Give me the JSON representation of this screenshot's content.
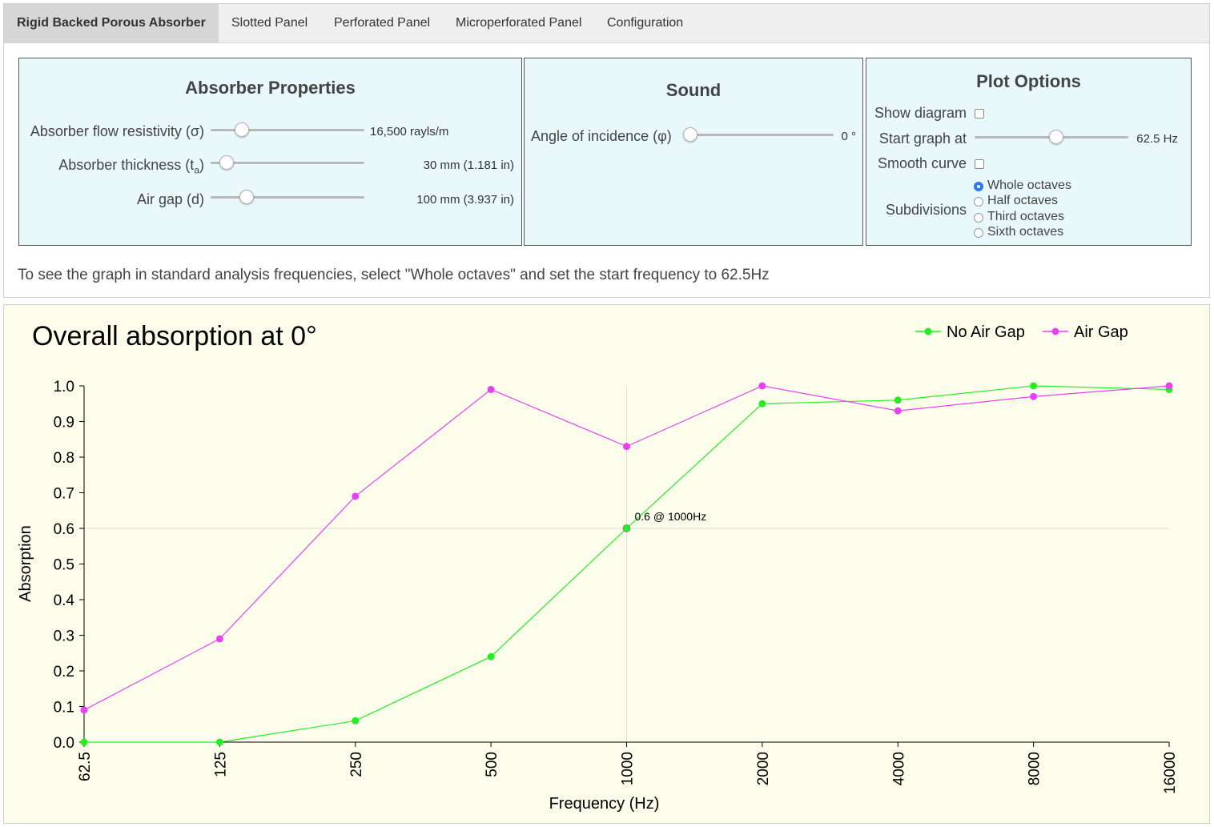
{
  "tabs": [
    {
      "label": "Rigid Backed Porous Absorber",
      "active": true
    },
    {
      "label": "Slotted Panel",
      "active": false
    },
    {
      "label": "Perforated Panel",
      "active": false
    },
    {
      "label": "Microperforated Panel",
      "active": false
    },
    {
      "label": "Configuration",
      "active": false
    }
  ],
  "absorber": {
    "title": "Absorber Properties",
    "flow_label": "Absorber flow resistivity (σ)",
    "flow_value": "16,500 rayls/m",
    "thickness_label_main": "Absorber thickness (t",
    "thickness_label_sub": "a",
    "thickness_label_end": ")",
    "thickness_value": "30 mm  (1.181 in)",
    "airgap_label": "Air gap (d)",
    "airgap_value": "100 mm  (3.937 in)"
  },
  "sound": {
    "title": "Sound",
    "angle_label": "Angle of incidence (φ)",
    "angle_value": "0 °"
  },
  "plot_options": {
    "title": "Plot Options",
    "show_diagram_label": "Show diagram",
    "start_graph_label": "Start graph at",
    "start_graph_value": "62.5 Hz",
    "smooth_curve_label": "Smooth curve",
    "subdivisions_label": "Subdivisions",
    "subdivision_options": [
      "Whole octaves",
      "Half octaves",
      "Third octaves",
      "Sixth octaves"
    ],
    "selected_subdivision": "Whole octaves"
  },
  "hint": "To see the graph in standard analysis frequencies, select \"Whole octaves\" and set the start frequency to 62.5Hz",
  "chart_data": {
    "type": "line",
    "title": "Overall absorption at 0°",
    "xlabel": "Frequency (Hz)",
    "ylabel": "Absorption",
    "categories": [
      "62.5",
      "125",
      "250",
      "500",
      "1000",
      "2000",
      "4000",
      "8000",
      "16000"
    ],
    "ylim": [
      0,
      1
    ],
    "yticks": [
      "0.0",
      "0.1",
      "0.2",
      "0.3",
      "0.4",
      "0.5",
      "0.6",
      "0.7",
      "0.8",
      "0.9",
      "1.0"
    ],
    "legend_position": "top-right",
    "series": [
      {
        "name": "No Air Gap",
        "color": "#22ee22",
        "values": [
          0.0,
          0.0,
          0.06,
          0.24,
          0.6,
          0.95,
          0.96,
          1.0,
          0.99
        ]
      },
      {
        "name": "Air Gap",
        "color": "#e642f2",
        "values": [
          0.09,
          0.29,
          0.69,
          0.99,
          0.83,
          1.0,
          0.93,
          0.97,
          1.0
        ]
      }
    ],
    "tooltip": {
      "text": "0.6 @ 1000Hz",
      "x": "1000",
      "y": 0.6
    }
  }
}
